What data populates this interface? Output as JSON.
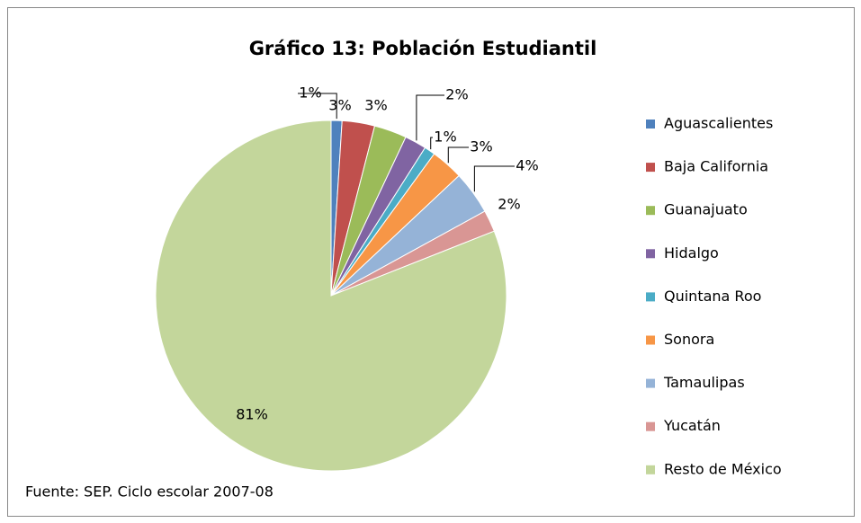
{
  "chart_data": {
    "type": "pie",
    "title": "Gráfico 13: Población Estudiantil",
    "categories": [
      "Aguascalientes",
      "Baja California",
      "Guanajuato",
      "Hidalgo",
      "Quintana Roo",
      "Sonora",
      "Tamaulipas",
      "Yucatán",
      "Resto de México"
    ],
    "values": [
      1,
      3,
      3,
      2,
      1,
      3,
      4,
      2,
      81
    ],
    "value_labels": [
      "1%",
      "3%",
      "3%",
      "2%",
      "1%",
      "3%",
      "4%",
      "2%",
      "81%"
    ],
    "colors": [
      "#4f81bd",
      "#c0504d",
      "#9bbb59",
      "#8064a2",
      "#4bacc6",
      "#f79646",
      "#95b3d7",
      "#d99694",
      "#c3d69b"
    ],
    "legend": "right",
    "source": "Fuente: SEP. Ciclo escolar 2007-08"
  }
}
